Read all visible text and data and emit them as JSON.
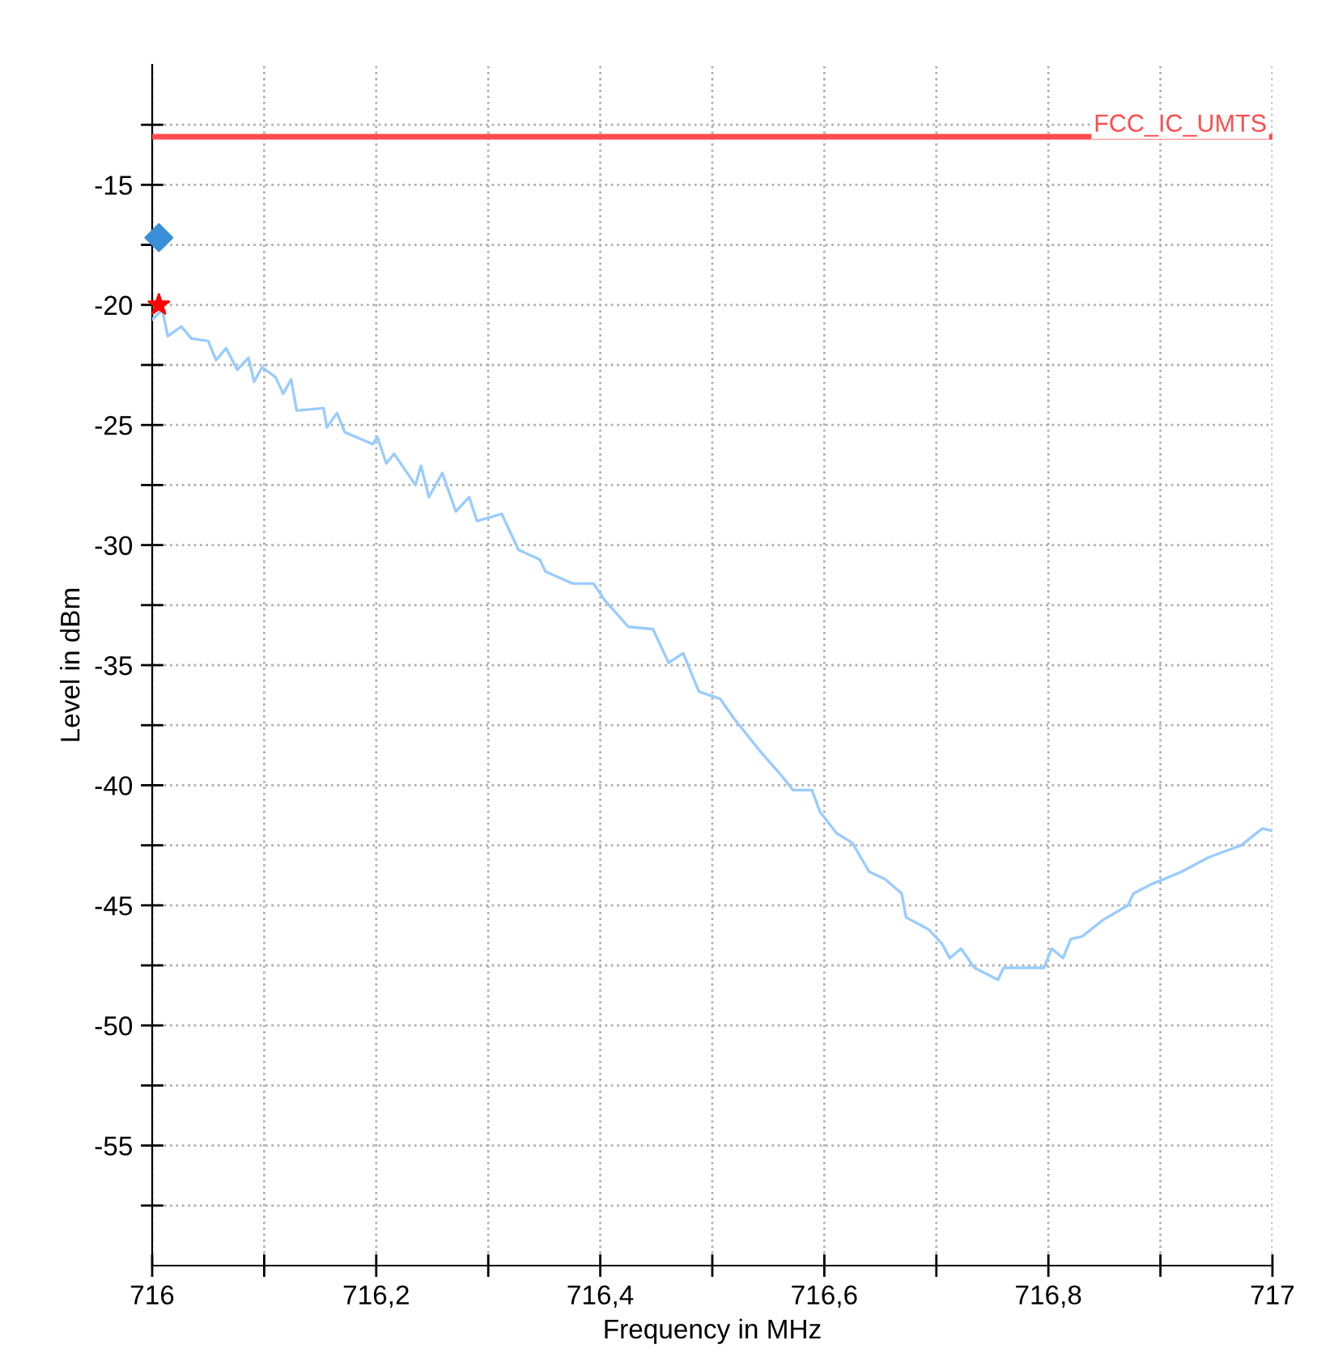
{
  "chart_data": {
    "type": "line",
    "xlabel": "Frequency in MHz",
    "ylabel": "Level in dBm",
    "xlim": [
      716,
      717
    ],
    "xticks": [
      {
        "value": 716,
        "label": "716"
      },
      {
        "value": 716.1,
        "label": null
      },
      {
        "value": 716.2,
        "label": "716,2"
      },
      {
        "value": 716.3,
        "label": null
      },
      {
        "value": 716.4,
        "label": "716,4"
      },
      {
        "value": 716.5,
        "label": null
      },
      {
        "value": 716.6,
        "label": "716,6"
      },
      {
        "value": 716.7,
        "label": null
      },
      {
        "value": 716.8,
        "label": "716,8"
      },
      {
        "value": 716.9,
        "label": null
      },
      {
        "value": 717,
        "label": "717"
      }
    ],
    "ylim": [
      -60,
      -10
    ],
    "yticks": [
      {
        "value": -57.5,
        "label": null
      },
      {
        "value": -55,
        "label": "-55"
      },
      {
        "value": -52.5,
        "label": null
      },
      {
        "value": -50,
        "label": "-50"
      },
      {
        "value": -47.5,
        "label": null
      },
      {
        "value": -45,
        "label": "-45"
      },
      {
        "value": -42.5,
        "label": null
      },
      {
        "value": -40,
        "label": "-40"
      },
      {
        "value": -37.5,
        "label": null
      },
      {
        "value": -35,
        "label": "-35"
      },
      {
        "value": -32.5,
        "label": null
      },
      {
        "value": -30,
        "label": "-30"
      },
      {
        "value": -27.5,
        "label": null
      },
      {
        "value": -25,
        "label": "-25"
      },
      {
        "value": -22.5,
        "label": null
      },
      {
        "value": -20,
        "label": "-20"
      },
      {
        "value": -17.5,
        "label": null
      },
      {
        "value": -15,
        "label": "-15"
      },
      {
        "value": -12.5,
        "label": null
      }
    ],
    "grid": true,
    "ref_lines": [
      {
        "axis": "y",
        "value": -13,
        "label": "FCC_IC_UMTS",
        "color": "#ff4d4d"
      }
    ],
    "series": [
      {
        "color": "#99ccff",
        "marker": "none",
        "x": [
          716.0,
          716.009,
          716.014,
          716.026,
          716.035,
          716.05,
          716.057,
          716.066,
          716.076,
          716.086,
          716.091,
          716.098,
          716.11,
          716.117,
          716.124,
          716.129,
          716.153,
          716.156,
          716.165,
          716.172,
          716.197,
          716.201,
          716.209,
          716.216,
          716.235,
          716.24,
          716.247,
          716.259,
          716.271,
          716.283,
          716.29,
          716.312,
          716.327,
          716.346,
          716.351,
          716.375,
          716.394,
          716.404,
          716.425,
          716.447,
          716.461,
          716.474,
          716.488,
          716.507,
          716.519,
          716.543,
          716.56,
          716.572,
          716.589,
          716.596,
          716.611,
          716.625,
          716.64,
          716.654,
          716.669,
          716.673,
          716.693,
          716.705,
          716.712,
          716.722,
          716.734,
          716.755,
          716.76,
          716.796,
          716.803,
          716.813,
          716.82,
          716.83,
          716.849,
          716.871,
          716.876,
          716.893,
          716.919,
          716.943,
          716.972,
          716.991,
          717.0
        ],
        "values": [
          -20.6,
          -20.2,
          -21.3,
          -20.9,
          -21.4,
          -21.5,
          -22.3,
          -21.8,
          -22.7,
          -22.2,
          -23.2,
          -22.6,
          -23.0,
          -23.7,
          -23.1,
          -24.4,
          -24.3,
          -25.1,
          -24.5,
          -25.3,
          -25.8,
          -25.5,
          -26.6,
          -26.2,
          -27.5,
          -26.7,
          -28.0,
          -27.0,
          -28.6,
          -28.0,
          -29.0,
          -28.7,
          -30.2,
          -30.6,
          -31.1,
          -31.6,
          -31.6,
          -32.3,
          -33.4,
          -33.5,
          -34.9,
          -34.5,
          -36.1,
          -36.4,
          -37.2,
          -38.6,
          -39.5,
          -40.2,
          -40.2,
          -41.1,
          -42.0,
          -42.4,
          -43.6,
          -43.9,
          -44.5,
          -45.5,
          -46.0,
          -46.6,
          -47.2,
          -46.8,
          -47.6,
          -48.1,
          -47.6,
          -47.6,
          -46.8,
          -47.2,
          -46.4,
          -46.3,
          -45.6,
          -45.0,
          -44.5,
          -44.1,
          -43.6,
          -43.0,
          -42.5,
          -41.8,
          -41.9
        ]
      },
      {
        "type": "scatter",
        "color": "#3a8fd9",
        "marker": "diamond",
        "x": [
          716.006
        ],
        "values": [
          -17.2
        ]
      },
      {
        "type": "scatter",
        "color": "#ff0000",
        "marker": "star",
        "x": [
          716.006
        ],
        "values": [
          -20.0
        ]
      }
    ]
  }
}
